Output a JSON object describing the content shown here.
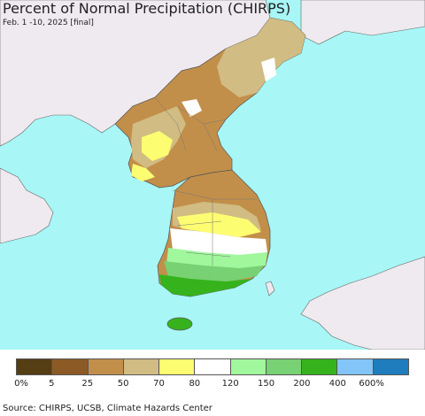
{
  "title": "Percent of Normal Precipitation (CHIRPS)",
  "subtitle": "Feb. 1 -10, 2025 [final]",
  "source": "Source: CHIRPS, UCSB, Climate Hazards Center",
  "colors": {
    "ocean": "#a8f6f6",
    "land_outside": "#efeaef",
    "border": "#555555"
  },
  "legend": {
    "colors": [
      "#553d14",
      "#8c5a24",
      "#c28f4a",
      "#d1bc83",
      "#fdfd72",
      "#ffffff",
      "#a0f79c",
      "#78d172",
      "#36b31c",
      "#83c4f9",
      "#1f7cbd"
    ],
    "labels": [
      "0%",
      "5",
      "25",
      "50",
      "70",
      "80",
      "120",
      "150",
      "200",
      "400",
      "600%"
    ]
  }
}
